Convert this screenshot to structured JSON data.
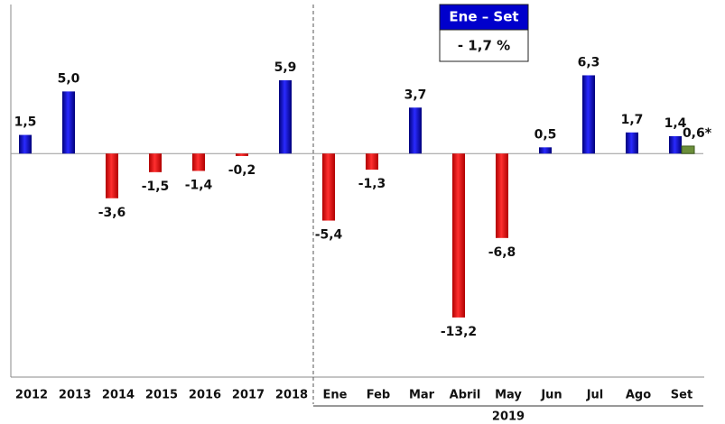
{
  "chart_data": {
    "type": "bar",
    "categories": [
      "2012",
      "2013",
      "2014",
      "2015",
      "2016",
      "2017",
      "2018",
      "Ene",
      "Feb",
      "Mar",
      "Abril",
      "May",
      "Jun",
      "Jul",
      "Ago",
      "Set"
    ],
    "category_groups": [
      null,
      null,
      null,
      null,
      null,
      null,
      null,
      "2019",
      "2019",
      "2019",
      "2019",
      "2019",
      "2019",
      "2019",
      "2019",
      "2019"
    ],
    "series": [
      {
        "positive_color": "#0000cc",
        "negative_color": "#ff0000",
        "values": [
          1.5,
          5.0,
          -3.6,
          -1.5,
          -1.4,
          -0.2,
          5.9,
          -5.4,
          -1.3,
          3.7,
          -13.2,
          -6.8,
          0.5,
          6.3,
          1.7,
          1.4
        ],
        "value_labels": [
          "1,5",
          "5,0",
          "-3,6",
          "-1,5",
          "-1,4",
          "-0,2",
          "5,9",
          "-5,4",
          "-1,3",
          "3,7",
          "-13,2",
          "-6,8",
          "0,5",
          "6,3",
          "1,7",
          "1,4"
        ]
      },
      {
        "color": "#6b8e3a",
        "values": [
          null,
          null,
          null,
          null,
          null,
          null,
          null,
          null,
          null,
          null,
          null,
          null,
          null,
          null,
          null,
          0.6
        ],
        "value_labels": [
          null,
          null,
          null,
          null,
          null,
          null,
          null,
          null,
          null,
          null,
          null,
          null,
          null,
          null,
          null,
          "0,6*"
        ]
      }
    ],
    "annotation": {
      "title": "Ene – Set",
      "text": "- 1,7 %"
    },
    "ylim": [
      -18,
      12
    ]
  }
}
